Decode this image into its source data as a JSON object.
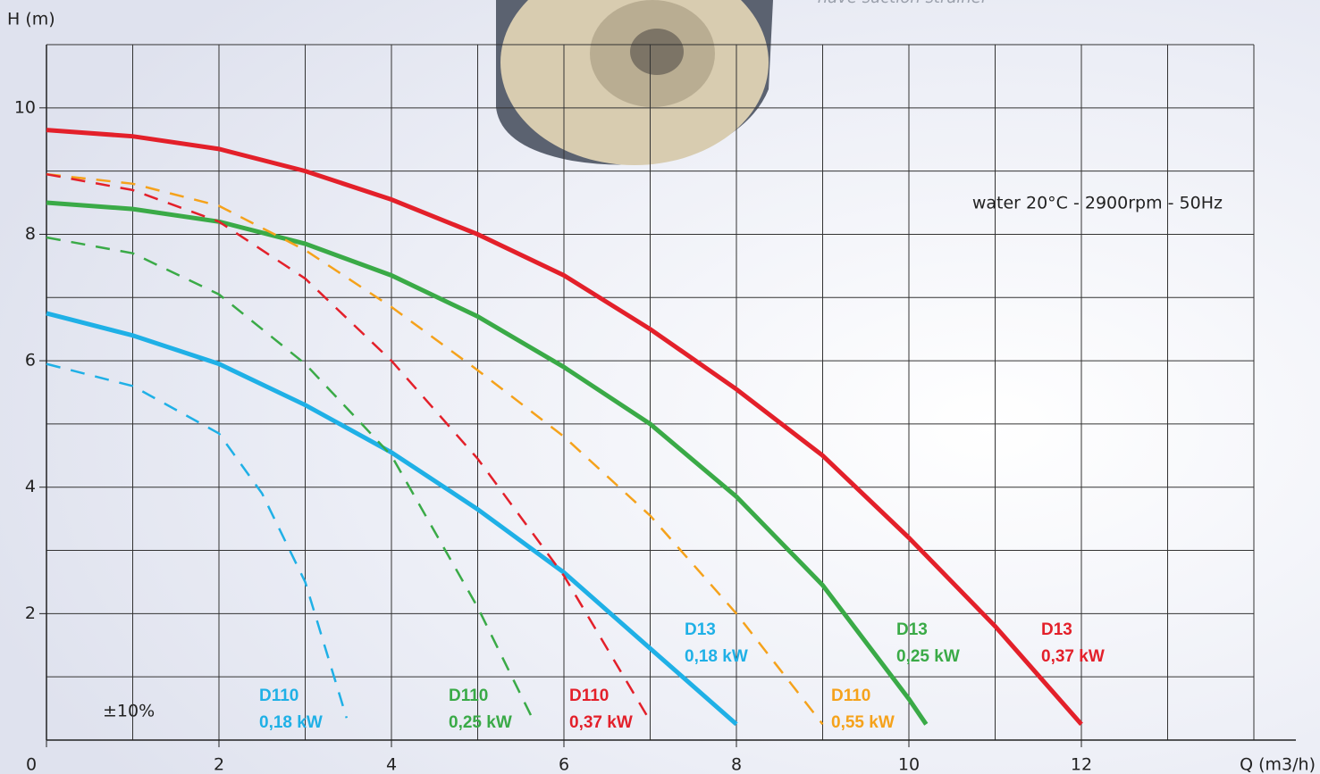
{
  "chart_data": {
    "type": "line",
    "top_note": "have suction strainer",
    "note": "water 20°C - 2900rpm - 50Hz",
    "tolerance": "±10%",
    "x_label": "Q (m3/h)",
    "y_label": "H (m)",
    "xlim": [
      0,
      14
    ],
    "ylim": [
      0,
      11
    ],
    "xticks": [
      0,
      2,
      4,
      6,
      8,
      10,
      12
    ],
    "yticks": [
      2,
      4,
      6,
      8,
      10
    ],
    "x_minor_ticks": [
      1,
      3,
      5,
      7,
      9,
      11,
      13,
      14
    ],
    "y_minor_ticks": [
      1,
      3,
      5,
      7,
      9,
      11
    ],
    "grid": true,
    "series": [
      {
        "name": "D13",
        "power": "0,37 kW",
        "color": "#e3202a",
        "dashed": false,
        "x": [
          0,
          1,
          2,
          3,
          4,
          5,
          6,
          7,
          8,
          9,
          10,
          11,
          12
        ],
        "values": [
          9.65,
          9.55,
          9.35,
          9.0,
          8.55,
          8.0,
          7.35,
          6.5,
          5.55,
          4.5,
          3.2,
          1.8,
          0.25
        ]
      },
      {
        "name": "D13",
        "power": "0,25 kW",
        "color": "#3aaa47",
        "dashed": false,
        "x": [
          0,
          1,
          2,
          3,
          4,
          5,
          6,
          7,
          8,
          9,
          10,
          10.2
        ],
        "values": [
          8.5,
          8.4,
          8.2,
          7.85,
          7.35,
          6.7,
          5.9,
          5.0,
          3.85,
          2.45,
          0.65,
          0.25
        ]
      },
      {
        "name": "D13",
        "power": "0,18 kW",
        "color": "#1fb0e6",
        "dashed": false,
        "x": [
          0,
          1,
          2,
          3,
          4,
          5,
          6,
          7,
          8
        ],
        "values": [
          6.75,
          6.4,
          5.95,
          5.3,
          4.55,
          3.65,
          2.65,
          1.45,
          0.25
        ]
      },
      {
        "name": "D110",
        "power": "0,55 kW",
        "color": "#f5a21b",
        "dashed": true,
        "x": [
          0,
          1,
          2,
          3,
          4,
          5,
          6,
          7,
          8,
          9
        ],
        "values": [
          8.95,
          8.8,
          8.45,
          7.75,
          6.85,
          5.85,
          4.8,
          3.55,
          2.0,
          0.25
        ]
      },
      {
        "name": "D110",
        "power": "0,37 kW",
        "color": "#e3202a",
        "dashed": true,
        "x": [
          0,
          1,
          2,
          3,
          4,
          5,
          6,
          7
        ],
        "values": [
          8.95,
          8.7,
          8.2,
          7.3,
          6.0,
          4.45,
          2.6,
          0.3
        ]
      },
      {
        "name": "D110",
        "power": "0,25 kW",
        "color": "#3aaa47",
        "dashed": true,
        "x": [
          0,
          1,
          2,
          3,
          4,
          5,
          5.65
        ],
        "values": [
          7.95,
          7.7,
          7.05,
          5.95,
          4.5,
          2.1,
          0.3
        ]
      },
      {
        "name": "D110",
        "power": "0,18 kW",
        "color": "#1fb0e6",
        "dashed": true,
        "x": [
          0,
          1,
          2,
          2.5,
          3,
          3.48
        ],
        "values": [
          5.95,
          5.6,
          4.85,
          3.9,
          2.5,
          0.35
        ]
      }
    ]
  }
}
